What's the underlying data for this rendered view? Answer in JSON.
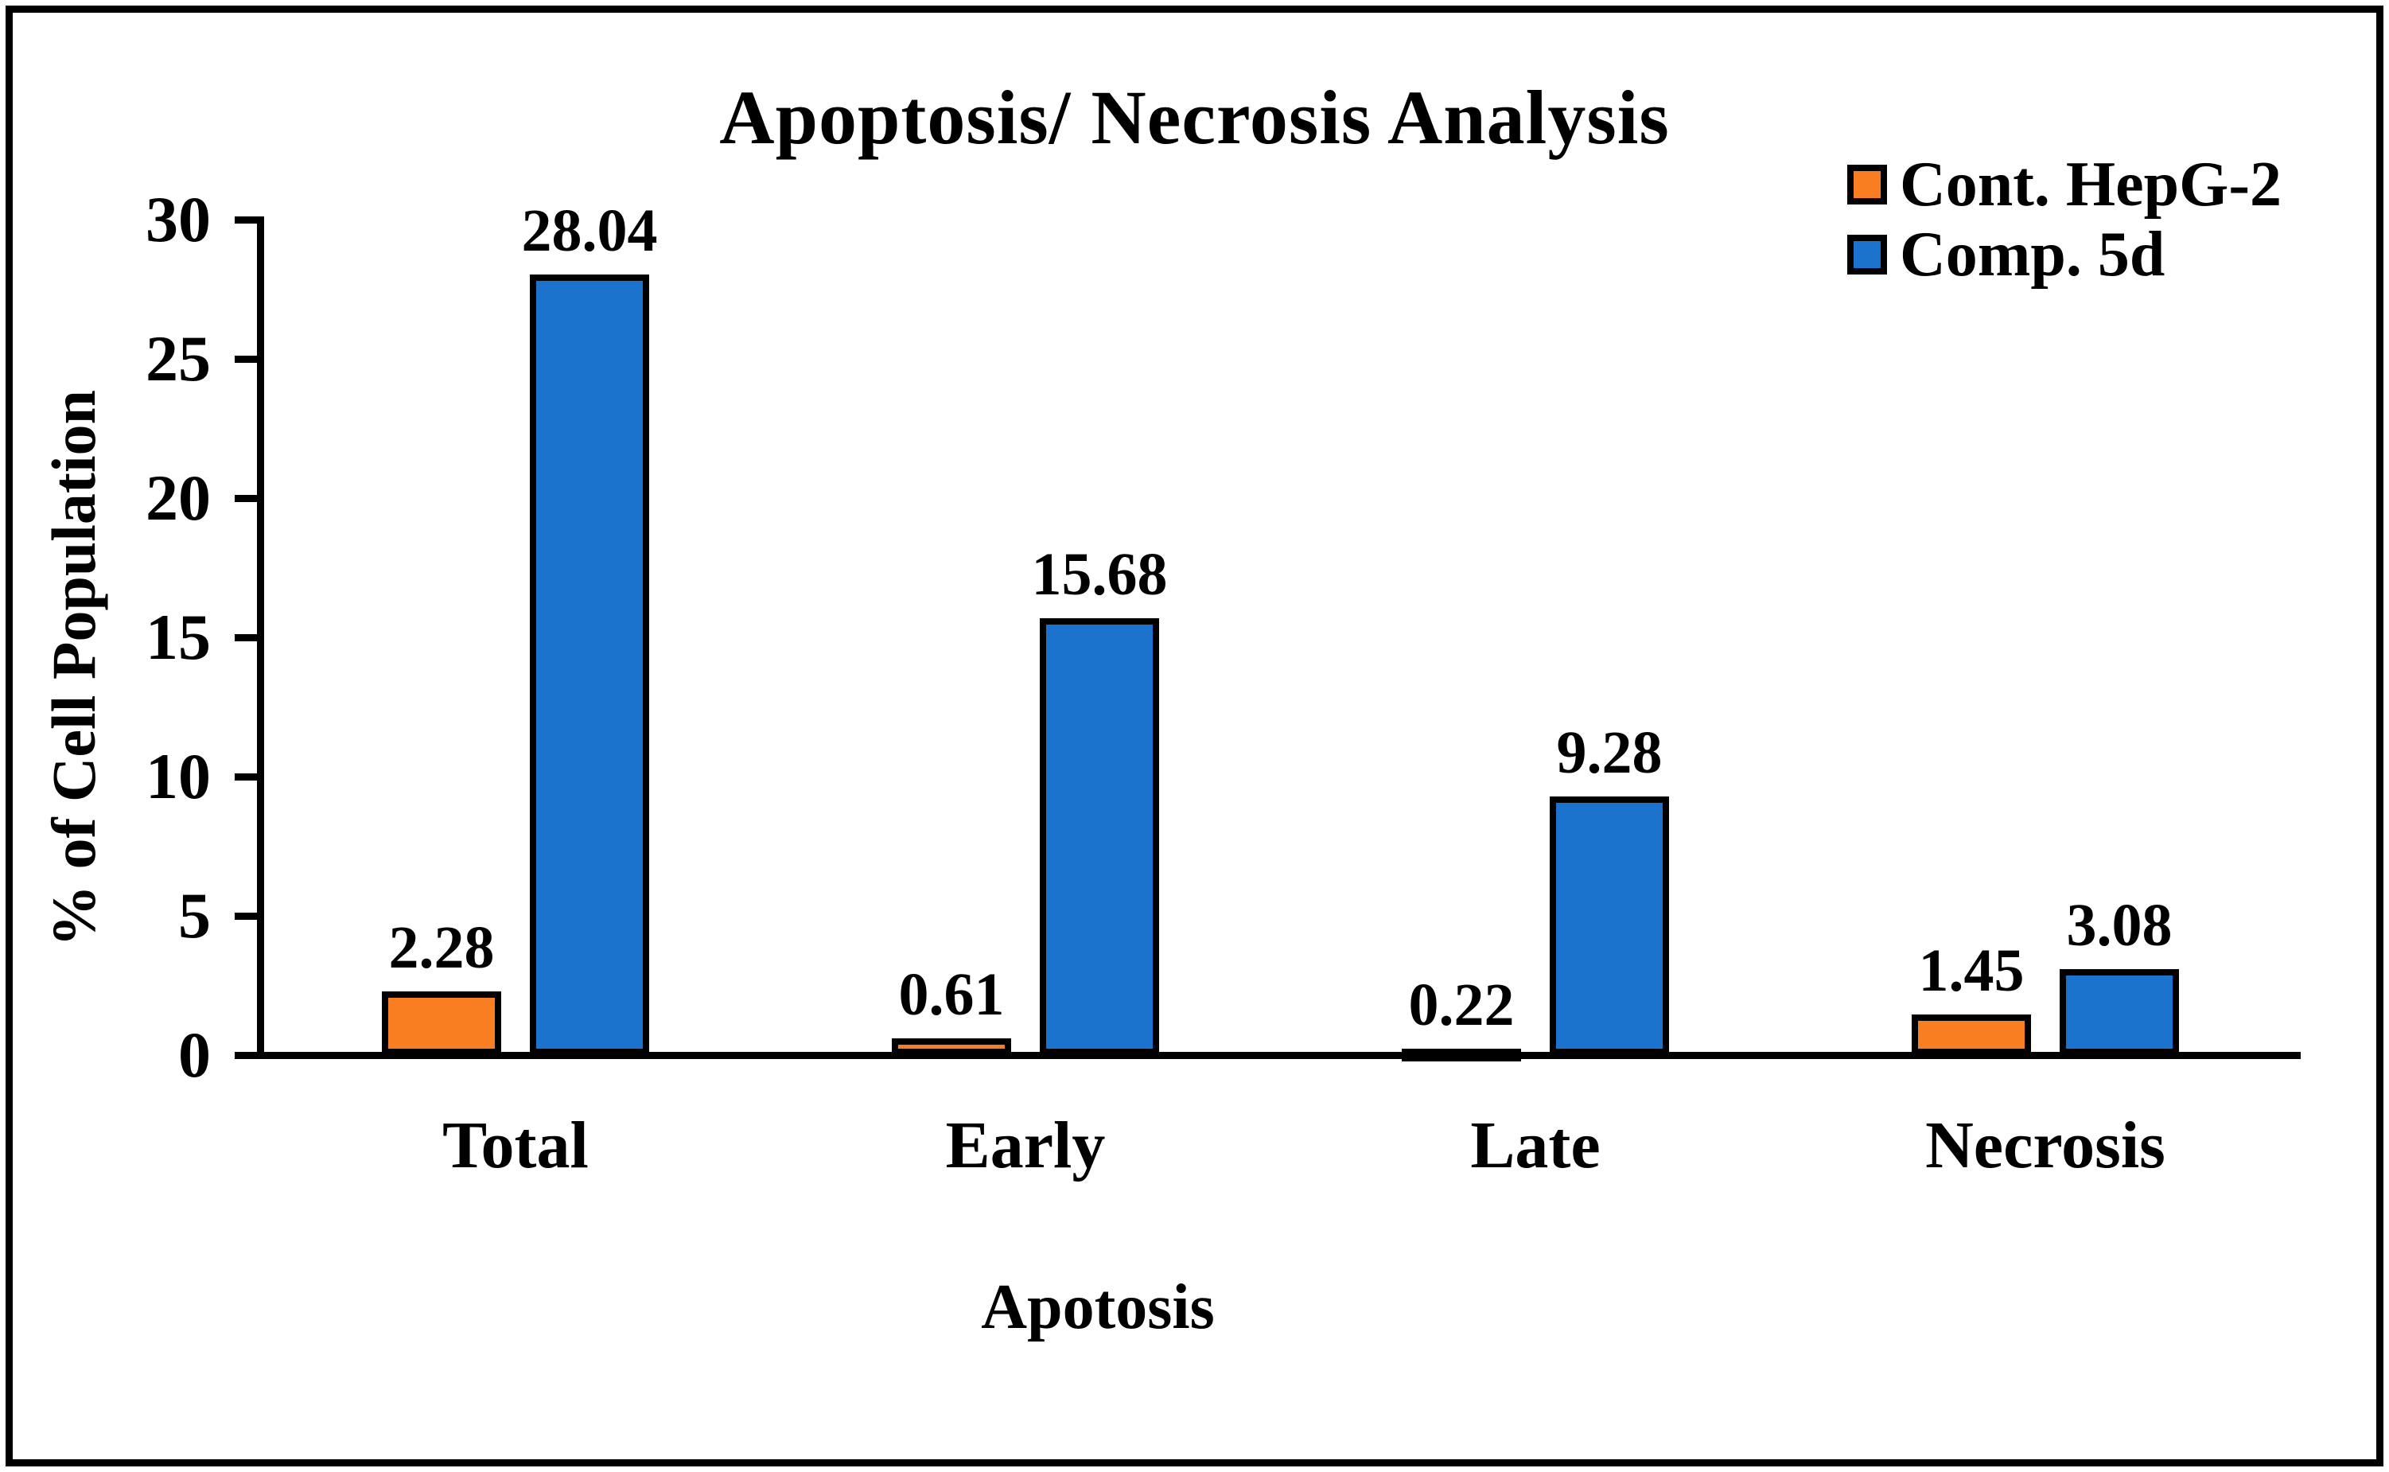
{
  "figure": {
    "background": "#ffffff",
    "frame_border_color": "#000000",
    "axis_color": "#000000",
    "bar_outline_color": "#000000",
    "text_color": "#000000"
  },
  "chart_data": {
    "type": "bar",
    "title": "Apoptosis/ Necrosis Analysis",
    "xlabel": "Apotosis",
    "ylabel": "% of Cell Population",
    "categories": [
      "Total",
      "Early",
      "Late",
      "Necrosis"
    ],
    "series": [
      {
        "name": "Cont. HepG-2",
        "color": "#F87E21",
        "values": [
          2.28,
          0.61,
          0.22,
          1.45
        ]
      },
      {
        "name": "Comp. 5d",
        "color": "#1B73CE",
        "values": [
          28.04,
          15.68,
          9.28,
          3.08
        ]
      }
    ],
    "ylim": [
      0,
      30
    ],
    "y_ticks": [
      0,
      5,
      10,
      15,
      20,
      25,
      30
    ],
    "grid": false,
    "data_labels": true,
    "legend_position": "top-right"
  }
}
